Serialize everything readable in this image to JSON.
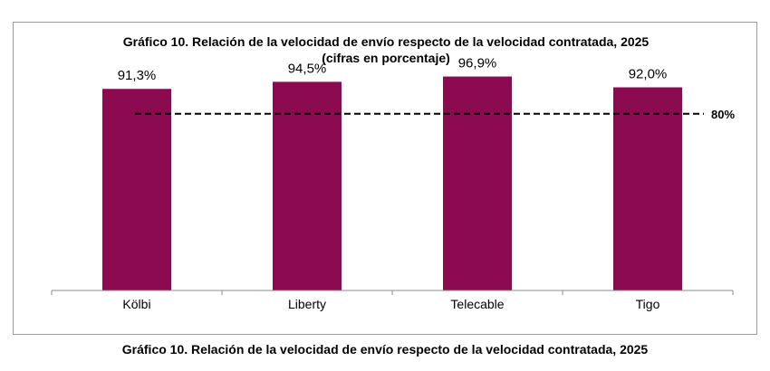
{
  "chart_data": {
    "type": "bar",
    "title": "Gráfico 10. Relación de la velocidad de envío respecto de la velocidad contratada, 2025",
    "subtitle": "(cifras en porcentaje)",
    "categories": [
      "Kölbi",
      "Liberty",
      "Telecable",
      "Tigo"
    ],
    "values": [
      91.3,
      94.5,
      96.9,
      92.0
    ],
    "value_labels": [
      "91,3%",
      "94,5%",
      "96,9%",
      "92,0%"
    ],
    "ylim": [
      0,
      100
    ],
    "grid": false,
    "reference_line": {
      "value": 80,
      "label": "80%",
      "style": "dashed"
    },
    "bar_color": "#8b0a50"
  },
  "caption": "Gráfico 10. Relación de la velocidad de envío respecto de la velocidad contratada, 2025"
}
